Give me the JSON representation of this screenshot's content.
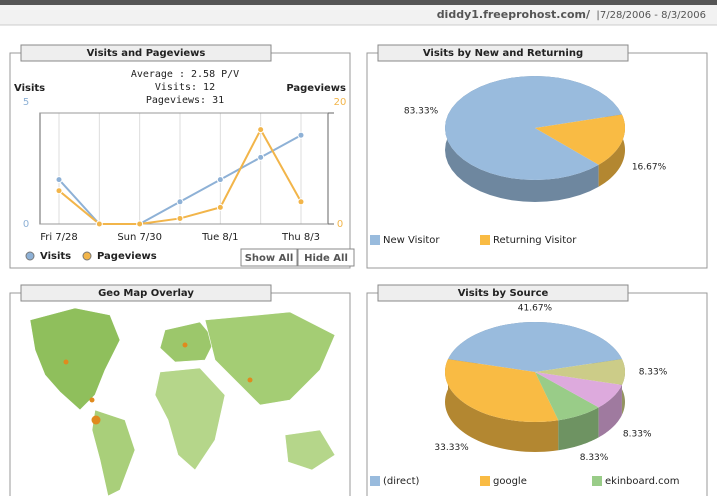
{
  "header": {
    "site": "diddy1.freeprohost.com/",
    "separator": "|",
    "date_range": "7/28/2006 - 8/3/2006"
  },
  "map_panel": {
    "title": "Geo Map Overlay"
  },
  "chart_data": [
    {
      "type": "line",
      "title": "Visits and Pageviews",
      "subtitle": [
        "Average : 2.58 P/V",
        "Visits: 12",
        "Pageviews: 31"
      ],
      "y_label": "Visits",
      "y2_label": "Pageviews",
      "categories": [
        "Fri 7/28",
        null,
        "Sun 7/30",
        null,
        "Tue 8/1",
        null,
        "Thu 8/3"
      ],
      "series": [
        {
          "name": "Visits",
          "color": "#8eb1d6",
          "values": [
            2,
            0,
            0,
            1,
            2,
            3,
            4
          ]
        },
        {
          "name": "Pageviews",
          "color": "#f2b54a",
          "values": [
            6,
            0,
            0,
            1,
            3,
            17,
            4
          ],
          "axis": "y2"
        }
      ],
      "ylim": [
        0,
        5
      ],
      "yticks": [
        0,
        5
      ],
      "y2lim": [
        0,
        20
      ],
      "y2ticks": [
        0,
        20
      ],
      "buttons": [
        "Show All",
        "Hide All"
      ]
    },
    {
      "type": "pie",
      "title": "Visits by New and Returning",
      "categories": [
        "New Visitor",
        "Returning Visitor"
      ],
      "values": [
        83.33,
        16.67
      ],
      "value_labels": [
        "83.33%",
        "16.67%"
      ],
      "colors": [
        "#99bbdd",
        "#f9bb44"
      ]
    },
    {
      "type": "pie",
      "title": "Visits by Source",
      "categories": [
        "(direct)",
        "google",
        "ekinboard.com",
        null,
        null
      ],
      "values": [
        41.67,
        33.33,
        8.33,
        8.33,
        8.33
      ],
      "value_labels": [
        "41.67%",
        "33.33%",
        "8.33%",
        "8.33%",
        "8.33%"
      ],
      "colors": [
        "#99bbdd",
        "#f9bb44",
        "#99cc88",
        "#ddaadd",
        "#cccc88"
      ]
    }
  ]
}
